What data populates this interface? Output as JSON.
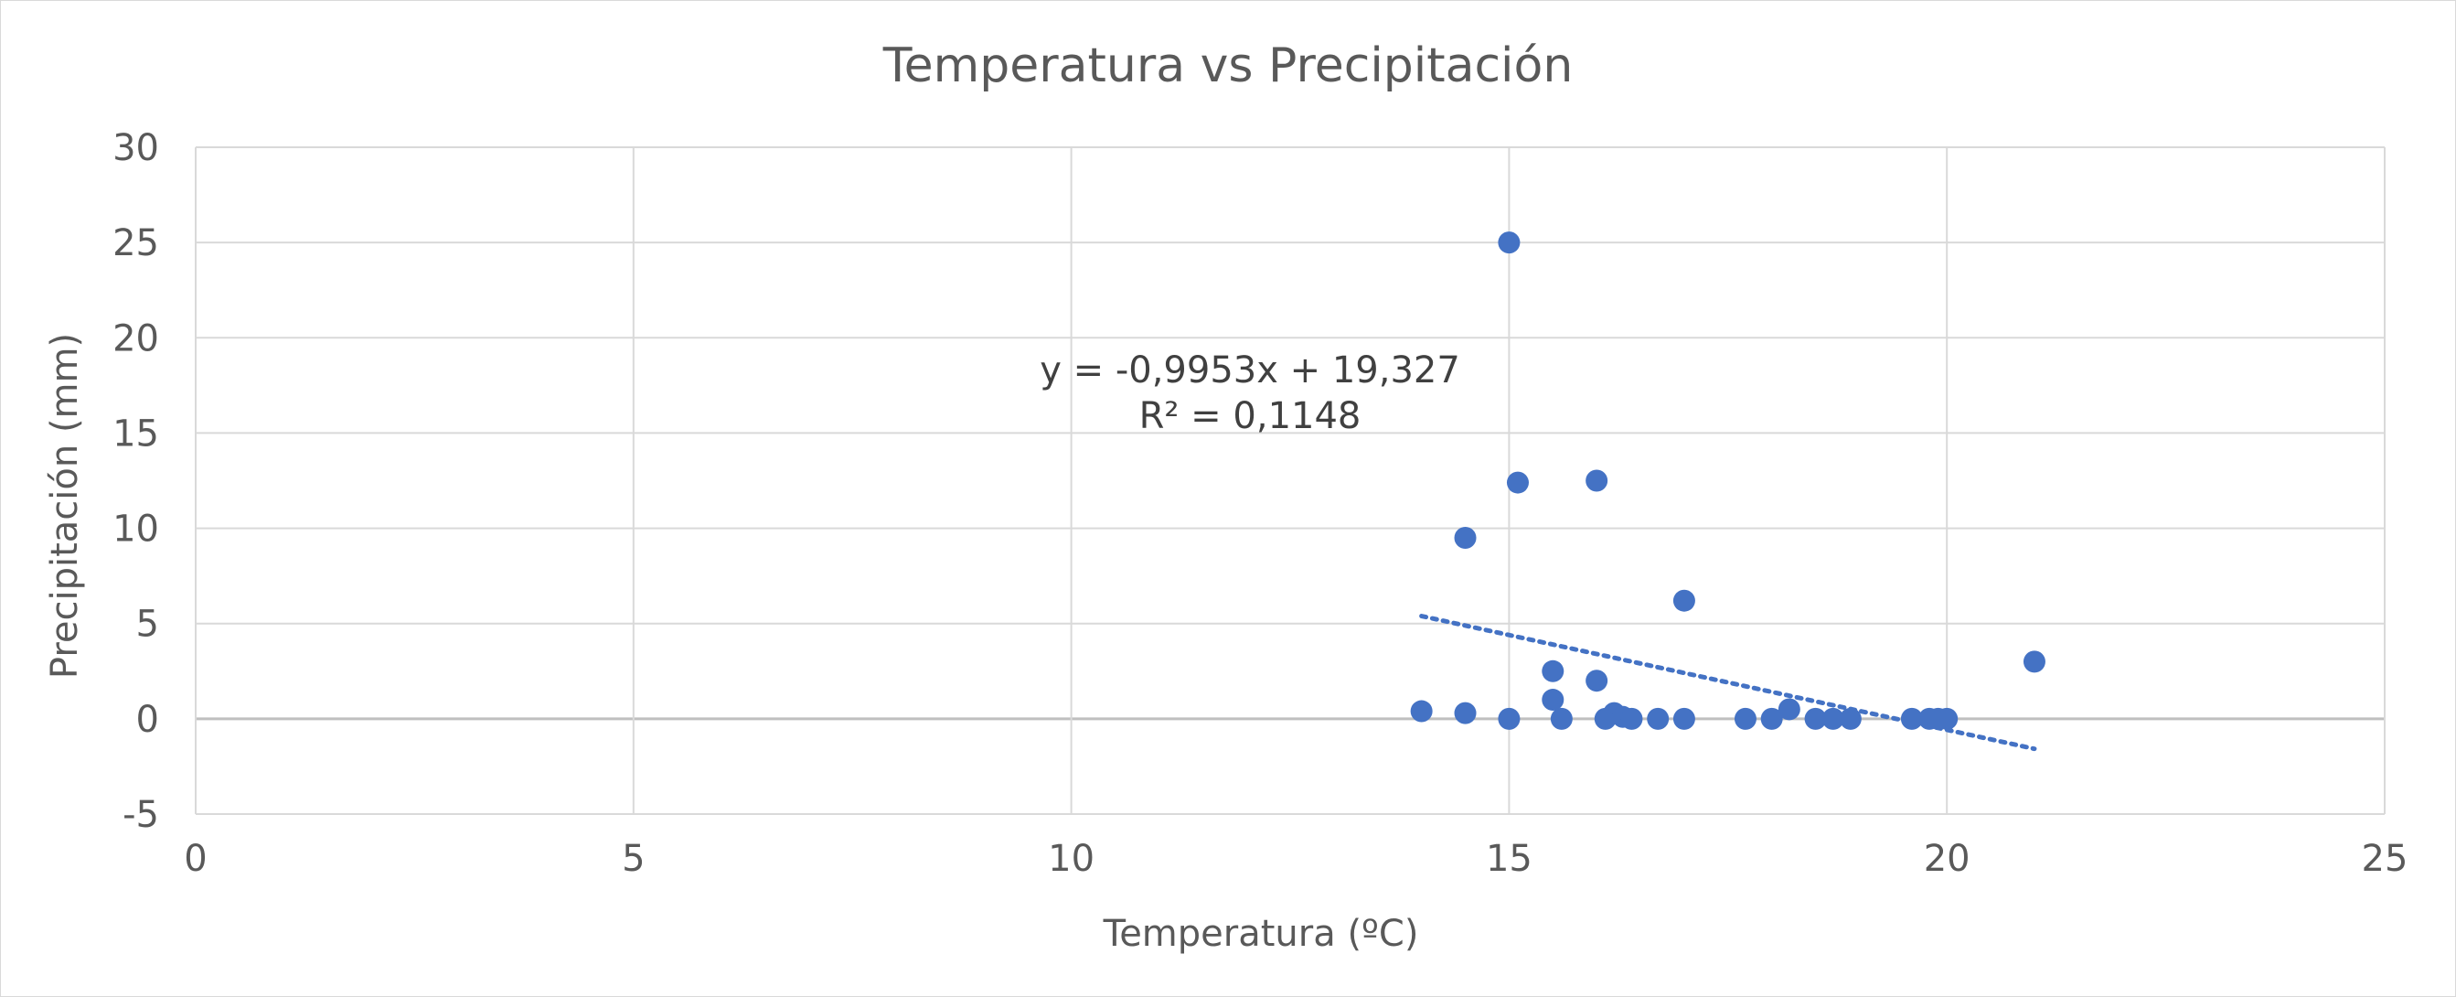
{
  "chart_data": {
    "type": "scatter",
    "title": "Temperatura vs Precipitación",
    "xlabel": "Temperatura (ºC)",
    "ylabel": "Precipitación (mm)",
    "xlim": [
      0,
      25
    ],
    "ylim": [
      -5,
      30
    ],
    "x_ticks": [
      0,
      5,
      10,
      15,
      20,
      25
    ],
    "y_ticks": [
      -5,
      0,
      5,
      10,
      15,
      20,
      25,
      30
    ],
    "grid": true,
    "legend": "none",
    "colors": {
      "points": "#4472c4",
      "trendline": "#4472c4",
      "grid": "#d9d9d9",
      "zero_axis": "#bfbfbf",
      "text": "#595959"
    },
    "series": [
      {
        "points": [
          {
            "x": 14.0,
            "y": 0.4
          },
          {
            "x": 14.5,
            "y": 0.3
          },
          {
            "x": 14.5,
            "y": 9.5
          },
          {
            "x": 15.0,
            "y": 25.0
          },
          {
            "x": 15.0,
            "y": 0.0
          },
          {
            "x": 15.1,
            "y": 12.4
          },
          {
            "x": 15.5,
            "y": 2.5
          },
          {
            "x": 15.5,
            "y": 1.0
          },
          {
            "x": 15.6,
            "y": 0.0
          },
          {
            "x": 16.0,
            "y": 12.5
          },
          {
            "x": 16.0,
            "y": 2.0
          },
          {
            "x": 16.1,
            "y": 0.0
          },
          {
            "x": 16.2,
            "y": 0.3
          },
          {
            "x": 16.3,
            "y": 0.1
          },
          {
            "x": 16.4,
            "y": 0.0
          },
          {
            "x": 16.7,
            "y": 0.0
          },
          {
            "x": 17.0,
            "y": 6.2
          },
          {
            "x": 17.0,
            "y": 0.0
          },
          {
            "x": 17.7,
            "y": 0.0
          },
          {
            "x": 18.0,
            "y": 0.0
          },
          {
            "x": 18.2,
            "y": 0.5
          },
          {
            "x": 18.5,
            "y": 0.0
          },
          {
            "x": 18.7,
            "y": 0.0
          },
          {
            "x": 18.9,
            "y": 0.0
          },
          {
            "x": 19.6,
            "y": 0.0
          },
          {
            "x": 19.8,
            "y": 0.0
          },
          {
            "x": 19.9,
            "y": 0.0
          },
          {
            "x": 20.0,
            "y": 0.0
          },
          {
            "x": 21.0,
            "y": 3.0
          }
        ]
      }
    ],
    "trendline": {
      "type": "linear",
      "slope": -0.9953,
      "intercept": 19.327,
      "x_range": [
        14,
        21
      ],
      "style": "dotted",
      "equation_text": "y = -0,9953x + 19,327",
      "r2_text": "R² = 0,1148"
    }
  }
}
